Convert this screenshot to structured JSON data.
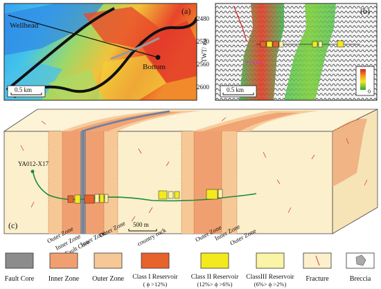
{
  "panel_a": {
    "label": "(a)",
    "wellhead_label": "Wellhead",
    "bottom_label": "Bottom",
    "scale_label": "0.5 km"
  },
  "panel_b": {
    "label": "(b)",
    "axis_title": "TWT/ ms",
    "ticks": [
      "2480",
      "2520",
      "2560",
      "2600"
    ],
    "scale_label": "0.5 km",
    "colorbar_zero": "0"
  },
  "panel_c": {
    "label": "(c)",
    "well_label": "YA012-X17",
    "scale_label": "500 m",
    "zone_labels": [
      "Outer Zone",
      "Inner Zone",
      "Fault Core",
      "Inner Zone",
      "Outer Zone",
      "country rock",
      "Outer Zone",
      "Inner Zone",
      "Outer Zone"
    ]
  },
  "legend": {
    "items": [
      {
        "label": "Fault Core",
        "color": "#8c8c8c"
      },
      {
        "label": "Inner Zone",
        "color": "#f0a070"
      },
      {
        "label": "Outer Zone",
        "color": "#f6c896"
      },
      {
        "label": "Class I Reservoir",
        "sub": "( ϕ >12%)",
        "color": "#e8622c"
      },
      {
        "label": "Class II Reservoir",
        "sub": "(12%> ϕ >6%)",
        "color": "#f2ea1e"
      },
      {
        "label": "ClassIII Reservoir",
        "sub": "(6%> ϕ >2%)",
        "color": "#fbf3a6"
      },
      {
        "label": "Fracture",
        "icon": "fracture-icon"
      },
      {
        "label": "Breccia",
        "icon": "breccia-icon"
      }
    ]
  }
}
